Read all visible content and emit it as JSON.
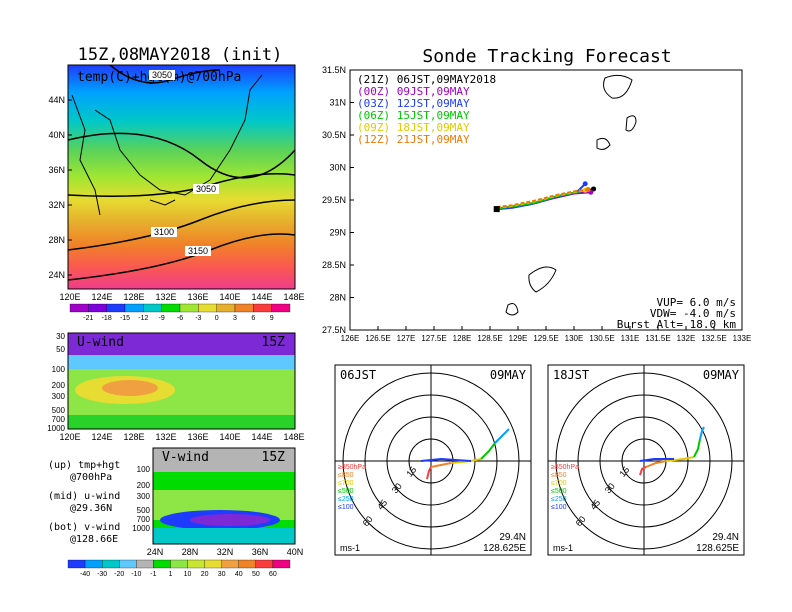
{
  "chart_data": [
    {
      "type": "heatmap",
      "title": "15Z,08MAY2018 (init)",
      "subtitle": "temp(C)+hgt(m)@700hPa",
      "xticks": [
        "120E",
        "124E",
        "128E",
        "132E",
        "136E",
        "140E",
        "144E",
        "148E"
      ],
      "yticks": [
        "44N",
        "40N",
        "36N",
        "32N",
        "28N",
        "24N"
      ],
      "contour_labels": [
        "3050",
        "3050",
        "3100",
        "3150"
      ],
      "colorbar_ticks": [
        "-21",
        "-18",
        "-15",
        "-12",
        "-9",
        "-6",
        "-3",
        "0",
        "3",
        "6",
        "9"
      ],
      "colors": [
        "#a000c8",
        "#7d00dc",
        "#1e3cff",
        "#00a0ff",
        "#00c8c8",
        "#00dc00",
        "#a0e632",
        "#e6dc32",
        "#e6af2d",
        "#f08228",
        "#fa3c3c",
        "#f00082"
      ]
    },
    {
      "type": "line",
      "title": "Sonde Tracking Forecast",
      "xticks": [
        "126E",
        "126.5E",
        "127E",
        "127.5E",
        "128E",
        "128.5E",
        "129E",
        "129.5E",
        "130E",
        "130.5E",
        "131E",
        "131.5E",
        "132E",
        "132.5E",
        "133E"
      ],
      "yticks": [
        "31.5N",
        "31N",
        "30.5N",
        "30N",
        "29.5N",
        "29N",
        "28.5N",
        "28N",
        "27.5N"
      ],
      "xlim": [
        126,
        133
      ],
      "ylim": [
        27.5,
        31.5
      ],
      "legend": [
        {
          "label": "(21Z)  06JST,09MAY2018",
          "color": "#000000"
        },
        {
          "label": "(00Z)  09JST,09MAY",
          "color": "#a000c8"
        },
        {
          "label": "(03Z)  12JST,09MAY",
          "color": "#1e3cff"
        },
        {
          "label": "(06Z)  15JST,09MAY",
          "color": "#00c800"
        },
        {
          "label": "(09Z)  18JST,09MAY",
          "color": "#e6c800"
        },
        {
          "label": "(12Z)  21JST,09MAY",
          "color": "#f07800"
        }
      ],
      "series": [
        {
          "name": "(21Z)",
          "x": [
            128.62,
            128.9,
            129.3,
            129.7,
            130.1,
            130.35
          ],
          "y": [
            29.36,
            29.4,
            29.45,
            29.55,
            29.63,
            29.67
          ]
        },
        {
          "name": "(00Z)",
          "x": [
            128.62,
            128.85,
            129.2,
            129.6,
            130.0,
            130.3
          ],
          "y": [
            29.37,
            29.39,
            29.43,
            29.52,
            29.6,
            29.62
          ]
        },
        {
          "name": "(03Z)",
          "x": [
            128.62,
            128.9,
            129.25,
            129.65,
            130.05,
            130.2
          ],
          "y": [
            29.36,
            29.38,
            29.44,
            29.54,
            29.62,
            29.75
          ]
        },
        {
          "name": "(06Z)",
          "x": [
            128.62,
            128.9,
            129.3,
            129.7,
            130.1,
            130.25
          ],
          "y": [
            29.37,
            29.4,
            29.46,
            29.56,
            29.63,
            29.66
          ]
        },
        {
          "name": "(09Z)",
          "x": [
            128.62,
            128.9,
            129.3,
            129.7,
            130.05,
            130.2
          ],
          "y": [
            29.38,
            29.41,
            29.48,
            29.57,
            29.63,
            29.65
          ]
        },
        {
          "name": "(12Z)",
          "x": [
            128.62,
            128.9,
            129.3,
            129.7,
            130.05,
            130.25
          ],
          "y": [
            29.39,
            29.42,
            29.49,
            29.58,
            29.64,
            29.66
          ]
        }
      ],
      "annotations": [
        "VUP= 6.0 m/s",
        "VDW= -4.0 m/s",
        "Burst Alt= 18.0 km"
      ]
    },
    {
      "type": "heatmap",
      "title": "U-wind",
      "time_label": "15Z",
      "xticks": [
        "120E",
        "124E",
        "128E",
        "132E",
        "136E",
        "140E",
        "144E",
        "148E"
      ],
      "yticks": [
        "30",
        "50",
        "100",
        "200",
        "300",
        "500",
        "700",
        "1000"
      ]
    },
    {
      "type": "heatmap",
      "title": "V-wind",
      "time_label": "15Z",
      "xticks": [
        "24N",
        "28N",
        "32N",
        "36N",
        "40N"
      ],
      "yticks": [
        "100",
        "200",
        "300",
        "500",
        "700",
        "1000"
      ],
      "colorbar_ticks": [
        "-40",
        "-30",
        "-20",
        "-10",
        "-1",
        "1",
        "10",
        "20",
        "30",
        "40",
        "50",
        "60"
      ]
    },
    {
      "type": "scatter",
      "title": "06JST",
      "date_label": "09MAY",
      "ring_labels": [
        "15",
        "30",
        "45",
        "60"
      ],
      "level_legend": [
        "≥850hPa",
        "≤850",
        "≤700",
        "≤500",
        "≤250",
        "≤100"
      ],
      "units": "ms-1",
      "lat": "29.4N",
      "lon": "128.625E"
    },
    {
      "type": "scatter",
      "title": "18JST",
      "date_label": "09MAY",
      "ring_labels": [
        "15",
        "30",
        "45",
        "60"
      ],
      "level_legend": [
        "≥850hPa",
        "≤850",
        "≤700",
        "≤500",
        "≤250",
        "≤100"
      ],
      "units": "ms-1",
      "lat": "29.4N",
      "lon": "128.625E"
    }
  ],
  "side_text": [
    "(up)  tmp+hgt",
    "@700hPa",
    "(mid)  u-wind",
    "@29.36N",
    "(bot)  v-wind",
    "@128.66E"
  ]
}
